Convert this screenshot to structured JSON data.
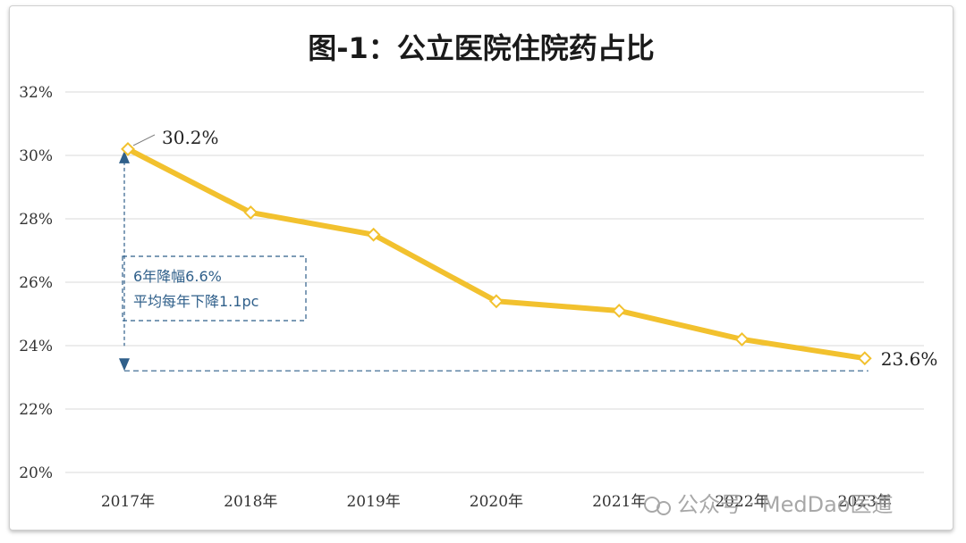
{
  "chart_data": {
    "type": "line",
    "title": "图-1：公立医院住院药占比",
    "categories": [
      "2017年",
      "2018年",
      "2019年",
      "2020年",
      "2021年",
      "2022年",
      "2023年"
    ],
    "series": [
      {
        "values": [
          30.2,
          28.2,
          27.5,
          25.4,
          25.1,
          24.2,
          23.6
        ],
        "color": "#f2c12e",
        "marker": "diamond"
      }
    ],
    "yticks": [
      "20%",
      "22%",
      "24%",
      "26%",
      "28%",
      "30%",
      "32%"
    ],
    "ylim": [
      20,
      32
    ],
    "grid": true,
    "data_labels": {
      "first": "30.2%",
      "last": "23.6%"
    },
    "annotation": {
      "line1": "6年降幅6.6%",
      "line2": "平均每年下降1.1pc",
      "color": "#2f5f8a"
    }
  },
  "watermark": {
    "text": "公众号 · MedDao医道"
  }
}
